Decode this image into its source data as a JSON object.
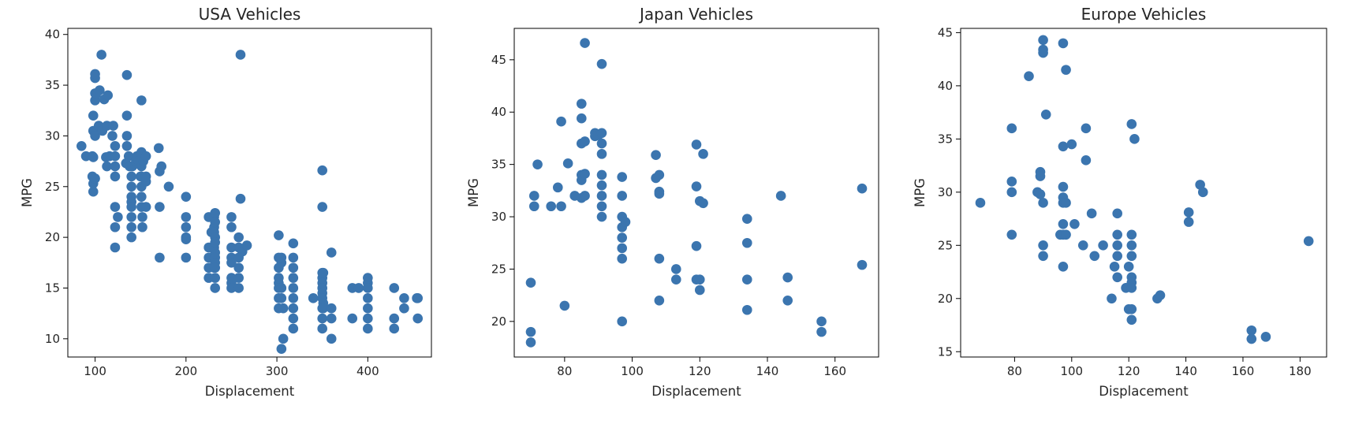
{
  "chart_data": [
    {
      "type": "scatter",
      "title": "USA Vehicles",
      "xlabel": "Displacement",
      "ylabel": "MPG",
      "xlim": [
        70,
        470
      ],
      "ylim": [
        8.2,
        40.6
      ],
      "xticks": [
        100,
        200,
        300,
        400
      ],
      "yticks": [
        10,
        15,
        20,
        25,
        30,
        35,
        40
      ],
      "color": "#3b75af",
      "points": [
        [
          85,
          29
        ],
        [
          90,
          28
        ],
        [
          97,
          26
        ],
        [
          97,
          28
        ],
        [
          98,
          24.5
        ],
        [
          98,
          25.3
        ],
        [
          98,
          27.9
        ],
        [
          98,
          30.5
        ],
        [
          98,
          32
        ],
        [
          100,
          34.2
        ],
        [
          100,
          35.7
        ],
        [
          100,
          36.1
        ],
        [
          100,
          25.8
        ],
        [
          100,
          33.5
        ],
        [
          100,
          30
        ],
        [
          101,
          34.1
        ],
        [
          104,
          31
        ],
        [
          105,
          34.5
        ],
        [
          107,
          38
        ],
        [
          108,
          30.5
        ],
        [
          110,
          33.6
        ],
        [
          112,
          27.9
        ],
        [
          113,
          31
        ],
        [
          113,
          27
        ],
        [
          114,
          34
        ],
        [
          116,
          28
        ],
        [
          119,
          30
        ],
        [
          120,
          31
        ],
        [
          122,
          29
        ],
        [
          122,
          27
        ],
        [
          122,
          21
        ],
        [
          122,
          28
        ],
        [
          122,
          19
        ],
        [
          122,
          23
        ],
        [
          122,
          26
        ],
        [
          125,
          22
        ],
        [
          134,
          27.3
        ],
        [
          135,
          36
        ],
        [
          135,
          32
        ],
        [
          135,
          30
        ],
        [
          135,
          29
        ],
        [
          137,
          28
        ],
        [
          138,
          27
        ],
        [
          140,
          26
        ],
        [
          140,
          22
        ],
        [
          140,
          20
        ],
        [
          140,
          21
        ],
        [
          140,
          24
        ],
        [
          140,
          25
        ],
        [
          140,
          23.5
        ],
        [
          140,
          23
        ],
        [
          141,
          27
        ],
        [
          145,
          27.5
        ],
        [
          146,
          28
        ],
        [
          148,
          27.5
        ],
        [
          150,
          26
        ],
        [
          151,
          26
        ],
        [
          151,
          24
        ],
        [
          151,
          28.4
        ],
        [
          151,
          33.5
        ],
        [
          151,
          23
        ],
        [
          151,
          25
        ],
        [
          151,
          27
        ],
        [
          151,
          28.3
        ],
        [
          152,
          22
        ],
        [
          152,
          21
        ],
        [
          153,
          27.5
        ],
        [
          156,
          25.5
        ],
        [
          156,
          26
        ],
        [
          156,
          23
        ],
        [
          156,
          28
        ],
        [
          170,
          28.8
        ],
        [
          171,
          23
        ],
        [
          171,
          26.5
        ],
        [
          171,
          18
        ],
        [
          173,
          27
        ],
        [
          181,
          25
        ],
        [
          200,
          24
        ],
        [
          200,
          22
        ],
        [
          200,
          21
        ],
        [
          200,
          20
        ],
        [
          200,
          18
        ],
        [
          200,
          19.8
        ],
        [
          225,
          22
        ],
        [
          225,
          19
        ],
        [
          225,
          18
        ],
        [
          225,
          17
        ],
        [
          225,
          16
        ],
        [
          228,
          20.5
        ],
        [
          231,
          21
        ],
        [
          231,
          20.5
        ],
        [
          231,
          19
        ],
        [
          231,
          17
        ],
        [
          231,
          18
        ],
        [
          231,
          22
        ],
        [
          232,
          22.4
        ],
        [
          232,
          21.5
        ],
        [
          232,
          20
        ],
        [
          232,
          19.5
        ],
        [
          232,
          18.5
        ],
        [
          232,
          18
        ],
        [
          232,
          17.5
        ],
        [
          232,
          17
        ],
        [
          232,
          16
        ],
        [
          232,
          15
        ],
        [
          250,
          22
        ],
        [
          250,
          21
        ],
        [
          250,
          18
        ],
        [
          250,
          17.5
        ],
        [
          250,
          19
        ],
        [
          250,
          16
        ],
        [
          250,
          15.5
        ],
        [
          250,
          15
        ],
        [
          258,
          18
        ],
        [
          258,
          20
        ],
        [
          258,
          19
        ],
        [
          258,
          17
        ],
        [
          258,
          16
        ],
        [
          258,
          15
        ],
        [
          260,
          38
        ],
        [
          260,
          23.8
        ],
        [
          262,
          18.6
        ],
        [
          267,
          19.2
        ],
        [
          302,
          20.2
        ],
        [
          302,
          18
        ],
        [
          302,
          17
        ],
        [
          302,
          16
        ],
        [
          302,
          15.5
        ],
        [
          302,
          15
        ],
        [
          302,
          14
        ],
        [
          302,
          13
        ],
        [
          305,
          15
        ],
        [
          305,
          17.5
        ],
        [
          305,
          18
        ],
        [
          305,
          14
        ],
        [
          305,
          9
        ],
        [
          307,
          10
        ],
        [
          307,
          13
        ],
        [
          318,
          19.4
        ],
        [
          318,
          18
        ],
        [
          318,
          17
        ],
        [
          318,
          16
        ],
        [
          318,
          15
        ],
        [
          318,
          14
        ],
        [
          318,
          13
        ],
        [
          318,
          12
        ],
        [
          318,
          11
        ],
        [
          340,
          14
        ],
        [
          350,
          26.6
        ],
        [
          350,
          23
        ],
        [
          350,
          16.5
        ],
        [
          350,
          16
        ],
        [
          350,
          15.5
        ],
        [
          350,
          15
        ],
        [
          350,
          14.5
        ],
        [
          350,
          14
        ],
        [
          350,
          13
        ],
        [
          350,
          12
        ],
        [
          350,
          11
        ],
        [
          351,
          16.5
        ],
        [
          351,
          13.5
        ],
        [
          351,
          13
        ],
        [
          360,
          13
        ],
        [
          360,
          12
        ],
        [
          360,
          10
        ],
        [
          360,
          18.5
        ],
        [
          383,
          15
        ],
        [
          383,
          12
        ],
        [
          390,
          15
        ],
        [
          400,
          16
        ],
        [
          400,
          15.5
        ],
        [
          400,
          15
        ],
        [
          400,
          14
        ],
        [
          400,
          13
        ],
        [
          400,
          12
        ],
        [
          400,
          11
        ],
        [
          429,
          15
        ],
        [
          429,
          12
        ],
        [
          429,
          11
        ],
        [
          440,
          14
        ],
        [
          440,
          13
        ],
        [
          454,
          14
        ],
        [
          455,
          14
        ],
        [
          455,
          12
        ]
      ]
    },
    {
      "type": "scatter",
      "title": "Japan Vehicles",
      "xlabel": "Displacement",
      "ylabel": "MPG",
      "xlim": [
        65.1,
        172.9
      ],
      "ylim": [
        16.6,
        48
      ],
      "xticks": [
        80,
        100,
        120,
        140,
        160
      ],
      "yticks": [
        20,
        25,
        30,
        35,
        40,
        45
      ],
      "color": "#3b75af",
      "points": [
        [
          70,
          23.7
        ],
        [
          70,
          19
        ],
        [
          70,
          18
        ],
        [
          71,
          32
        ],
        [
          71,
          31
        ],
        [
          72,
          35
        ],
        [
          76,
          31
        ],
        [
          78,
          32.8
        ],
        [
          79,
          39.1
        ],
        [
          79,
          31
        ],
        [
          80,
          21.5
        ],
        [
          81,
          35.1
        ],
        [
          83,
          32
        ],
        [
          85,
          33.5
        ],
        [
          85,
          31.8
        ],
        [
          85,
          34
        ],
        [
          85,
          39.4
        ],
        [
          85,
          37
        ],
        [
          85,
          40.8
        ],
        [
          86,
          46.6
        ],
        [
          86,
          37.2
        ],
        [
          86,
          32
        ],
        [
          86,
          34.1
        ],
        [
          89,
          38
        ],
        [
          89,
          37.7
        ],
        [
          90,
          37.8
        ],
        [
          91,
          44.6
        ],
        [
          91,
          38
        ],
        [
          91,
          37
        ],
        [
          91,
          36
        ],
        [
          91,
          34
        ],
        [
          91,
          33
        ],
        [
          91,
          32
        ],
        [
          91,
          31
        ],
        [
          91,
          30
        ],
        [
          97,
          33.8
        ],
        [
          97,
          32
        ],
        [
          97,
          30
        ],
        [
          97,
          29
        ],
        [
          97,
          28
        ],
        [
          97,
          27
        ],
        [
          97,
          26
        ],
        [
          97,
          20
        ],
        [
          98,
          29.5
        ],
        [
          107,
          35.9
        ],
        [
          107,
          33.7
        ],
        [
          108,
          34
        ],
        [
          108,
          32.4
        ],
        [
          108,
          32.2
        ],
        [
          108,
          26
        ],
        [
          108,
          22
        ],
        [
          113,
          24
        ],
        [
          113,
          25
        ],
        [
          119,
          36.9
        ],
        [
          119,
          32.9
        ],
        [
          119,
          27.2
        ],
        [
          119,
          24
        ],
        [
          120,
          24
        ],
        [
          120,
          23
        ],
        [
          120,
          31.5
        ],
        [
          121,
          36
        ],
        [
          121,
          31.3
        ],
        [
          134,
          29.8
        ],
        [
          134,
          27.5
        ],
        [
          134,
          24
        ],
        [
          134,
          21.1
        ],
        [
          144,
          32
        ],
        [
          146,
          24.2
        ],
        [
          146,
          22
        ],
        [
          156,
          20
        ],
        [
          156,
          19
        ],
        [
          168,
          32.7
        ],
        [
          168,
          25.4
        ]
      ]
    },
    {
      "type": "scatter",
      "title": "Europe Vehicles",
      "xlabel": "Displacement",
      "ylabel": "MPG",
      "xlim": [
        61.1,
        189.3
      ],
      "ylim": [
        14.5,
        45.4
      ],
      "xticks": [
        80,
        100,
        120,
        140,
        160,
        180
      ],
      "yticks": [
        15,
        20,
        25,
        30,
        35,
        40,
        45
      ],
      "color": "#3b75af",
      "points": [
        [
          68,
          29
        ],
        [
          79,
          36
        ],
        [
          79,
          31
        ],
        [
          79,
          30
        ],
        [
          79,
          26
        ],
        [
          85,
          40.9
        ],
        [
          88,
          30
        ],
        [
          89,
          31.9
        ],
        [
          89,
          31.5
        ],
        [
          89,
          29.8
        ],
        [
          90,
          44.3
        ],
        [
          90,
          43.4
        ],
        [
          90,
          43.1
        ],
        [
          90,
          29
        ],
        [
          90,
          25
        ],
        [
          90,
          24
        ],
        [
          91,
          37.3
        ],
        [
          96,
          26
        ],
        [
          97,
          44
        ],
        [
          97,
          34.3
        ],
        [
          97,
          30.5
        ],
        [
          97,
          29.5
        ],
        [
          97,
          29
        ],
        [
          97,
          27
        ],
        [
          97,
          26
        ],
        [
          97,
          23
        ],
        [
          98,
          41.5
        ],
        [
          98,
          29
        ],
        [
          98,
          26
        ],
        [
          100,
          34.5
        ],
        [
          101,
          27
        ],
        [
          104,
          25
        ],
        [
          105,
          36
        ],
        [
          105,
          33
        ],
        [
          107,
          28
        ],
        [
          108,
          24
        ],
        [
          111,
          25
        ],
        [
          114,
          20
        ],
        [
          115,
          23
        ],
        [
          116,
          28
        ],
        [
          116,
          26
        ],
        [
          116,
          25
        ],
        [
          116,
          24
        ],
        [
          116,
          22
        ],
        [
          119,
          21
        ],
        [
          120,
          23
        ],
        [
          120,
          19
        ],
        [
          121,
          36.4
        ],
        [
          121,
          26
        ],
        [
          121,
          25
        ],
        [
          121,
          24
        ],
        [
          121,
          22
        ],
        [
          121,
          21.5
        ],
        [
          121,
          21
        ],
        [
          121,
          19
        ],
        [
          121,
          18
        ],
        [
          122,
          35
        ],
        [
          130,
          20
        ],
        [
          131,
          20.3
        ],
        [
          141,
          28.1
        ],
        [
          141,
          27.2
        ],
        [
          145,
          30.7
        ],
        [
          146,
          30
        ],
        [
          163,
          17
        ],
        [
          163,
          16.2
        ],
        [
          168,
          16.4
        ],
        [
          183,
          25.4
        ]
      ]
    }
  ]
}
